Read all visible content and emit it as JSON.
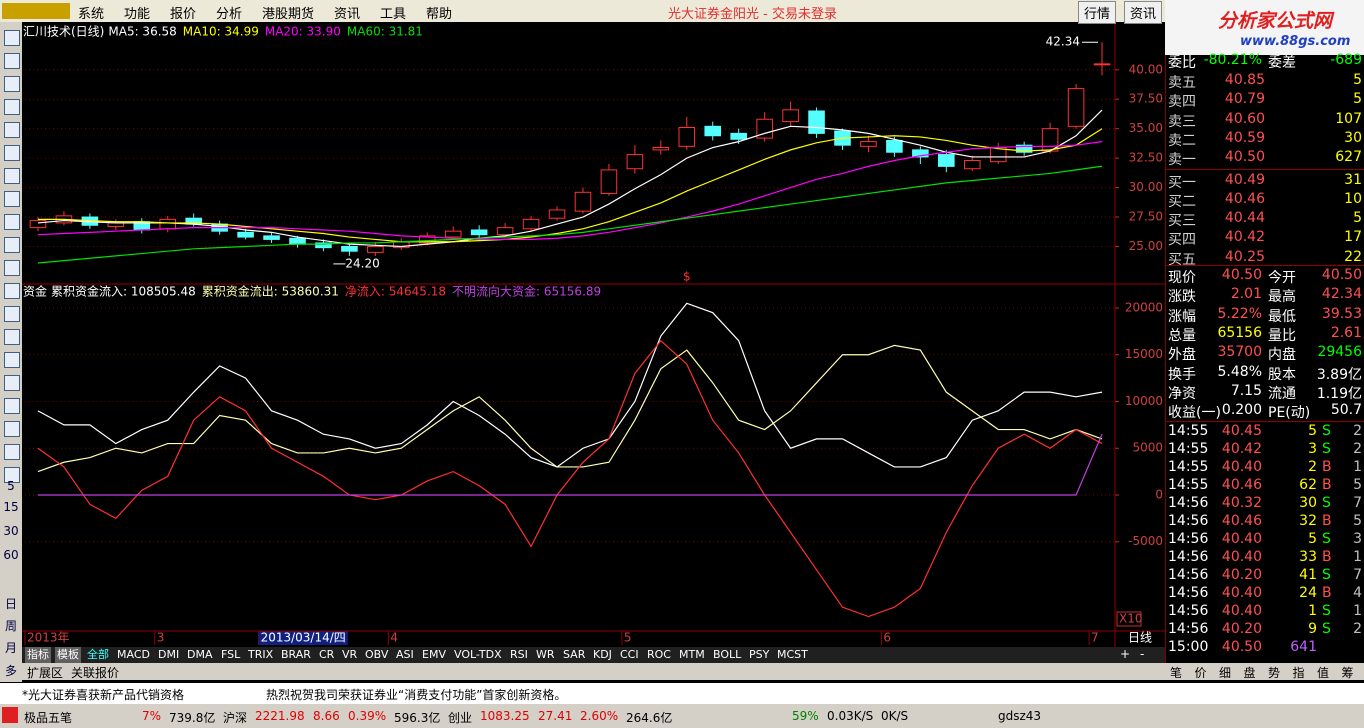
{
  "menu": {
    "items": [
      "系统",
      "功能",
      "报价",
      "分析",
      "港股期货",
      "资讯",
      "工具",
      "帮助"
    ],
    "window_title": "光大证券金阳光 - 交易未登录",
    "buttons": [
      "行情",
      "资讯"
    ],
    "logo": "分析家公式网",
    "logo_url": "www.88gs.com"
  },
  "left_toolbar": {
    "labels": [
      "5",
      "15",
      "30",
      "60",
      "日",
      "周",
      "月",
      "多"
    ]
  },
  "chart_data": [
    {
      "type": "candlestick",
      "title": "汇川技术(日线)",
      "categories": [
        "2013年",
        null,
        null,
        null,
        null,
        "3",
        null,
        null,
        null,
        "2013/03/14/四",
        null,
        null,
        null,
        null,
        "4",
        null,
        null,
        null,
        null,
        null,
        null,
        null,
        null,
        "5",
        null,
        null,
        null,
        null,
        null,
        null,
        null,
        null,
        null,
        "6",
        null,
        null,
        null,
        null,
        null,
        null,
        null,
        "7"
      ],
      "open": [
        26.6,
        27.0,
        27.5,
        26.7,
        27.1,
        26.5,
        27.4,
        26.9,
        26.2,
        25.9,
        25.7,
        25.3,
        25.0,
        24.5,
        24.9,
        25.3,
        25.8,
        26.4,
        26.0,
        26.5,
        27.4,
        28.0,
        29.5,
        31.6,
        33.2,
        33.5,
        35.2,
        34.6,
        34.2,
        35.6,
        36.5,
        34.8,
        33.5,
        34.0,
        33.2,
        32.8,
        31.6,
        32.2,
        33.6,
        33.1,
        35.2,
        40.5
      ],
      "high": [
        27.5,
        28.0,
        27.8,
        27.3,
        27.4,
        27.6,
        27.8,
        27.2,
        26.5,
        26.2,
        25.9,
        25.6,
        25.2,
        25.4,
        25.7,
        26.2,
        26.7,
        26.8,
        27.0,
        27.6,
        28.4,
        30.0,
        32.0,
        33.6,
        34.0,
        36.0,
        35.6,
        35.0,
        36.4,
        37.3,
        36.8,
        35.0,
        34.4,
        34.3,
        33.5,
        33.2,
        32.7,
        33.8,
        33.9,
        35.5,
        38.8,
        42.34
      ],
      "low": [
        26.3,
        26.8,
        26.5,
        26.4,
        26.1,
        26.2,
        26.7,
        26.0,
        25.6,
        25.3,
        24.9,
        24.6,
        24.2,
        24.2,
        24.7,
        25.1,
        25.6,
        25.7,
        25.8,
        26.3,
        27.2,
        27.8,
        29.3,
        31.2,
        32.8,
        33.2,
        34.0,
        33.7,
        33.9,
        35.2,
        34.2,
        33.2,
        33.0,
        32.6,
        32.0,
        31.3,
        31.4,
        32.0,
        32.7,
        32.9,
        35.0,
        39.53
      ],
      "close": [
        27.2,
        27.6,
        26.8,
        27.0,
        26.4,
        27.3,
        26.9,
        26.3,
        25.8,
        25.6,
        25.2,
        24.9,
        24.6,
        25.0,
        25.4,
        25.9,
        26.3,
        26.0,
        26.6,
        27.3,
        28.1,
        29.6,
        31.5,
        32.8,
        33.4,
        35.1,
        34.4,
        34.1,
        35.8,
        36.6,
        34.6,
        33.6,
        33.9,
        33.0,
        32.6,
        31.8,
        32.3,
        33.4,
        33.0,
        35.0,
        38.4,
        40.5
      ],
      "up_color": "#ff3232",
      "down_color": "#54ffff",
      "series": [
        {
          "name": "MA5: 36.58",
          "color": "#ffffff",
          "values": [
            27.0,
            27.2,
            27.1,
            27.0,
            27.0,
            27.0,
            26.9,
            26.7,
            26.4,
            26.2,
            25.8,
            25.5,
            25.2,
            25.1,
            25.0,
            25.2,
            25.4,
            25.7,
            25.9,
            26.3,
            26.9,
            27.5,
            28.6,
            29.9,
            31.1,
            32.5,
            33.4,
            33.9,
            34.6,
            35.2,
            35.1,
            34.9,
            34.6,
            34.1,
            33.6,
            33.0,
            32.6,
            32.6,
            32.6,
            33.1,
            34.4,
            36.58
          ]
        },
        {
          "name": "MA10: 34.99",
          "color": "#ffff00",
          "values": [
            27.3,
            27.3,
            27.2,
            27.1,
            27.1,
            27.0,
            27.0,
            26.9,
            26.7,
            26.5,
            26.3,
            26.1,
            25.8,
            25.6,
            25.4,
            25.4,
            25.4,
            25.5,
            25.6,
            25.8,
            26.1,
            26.5,
            27.1,
            27.9,
            28.7,
            29.7,
            30.6,
            31.5,
            32.4,
            33.2,
            33.8,
            34.2,
            34.3,
            34.4,
            34.3,
            34.0,
            33.6,
            33.3,
            33.1,
            33.2,
            33.6,
            34.99
          ]
        },
        {
          "name": "MA20: 33.90",
          "color": "#ff00ff",
          "values": [
            26.0,
            26.1,
            26.2,
            26.3,
            26.4,
            26.5,
            26.6,
            26.6,
            26.6,
            26.6,
            26.5,
            26.4,
            26.3,
            26.1,
            25.9,
            25.8,
            25.7,
            25.6,
            25.6,
            25.6,
            25.7,
            25.9,
            26.2,
            26.6,
            27.0,
            27.5,
            28.0,
            28.6,
            29.3,
            30.0,
            30.7,
            31.2,
            31.8,
            32.3,
            32.7,
            33.0,
            33.3,
            33.4,
            33.5,
            33.5,
            33.6,
            33.9
          ]
        },
        {
          "name": "MA60: 31.81",
          "color": "#00e000",
          "values": [
            23.6,
            23.8,
            24.0,
            24.2,
            24.4,
            24.6,
            24.8,
            24.9,
            25.0,
            25.1,
            25.2,
            25.2,
            25.3,
            25.3,
            25.4,
            25.5,
            25.6,
            25.7,
            25.8,
            25.9,
            26.0,
            26.2,
            26.5,
            26.8,
            27.1,
            27.4,
            27.7,
            28.0,
            28.3,
            28.6,
            28.9,
            29.2,
            29.5,
            29.8,
            30.1,
            30.4,
            30.6,
            30.8,
            31.0,
            31.2,
            31.5,
            31.81
          ]
        }
      ],
      "ylim": [
        21.9,
        43.8
      ],
      "yticks": [
        {
          "value": 25,
          "label": "25.00"
        },
        {
          "value": 27.5,
          "label": "27.50"
        },
        {
          "value": 30,
          "label": "30.00"
        },
        {
          "value": 32.5,
          "label": "32.50"
        },
        {
          "value": 35,
          "label": "35.00"
        },
        {
          "value": 37.5,
          "label": "37.50"
        },
        {
          "value": 40,
          "label": "40.00"
        }
      ],
      "grid": true,
      "annotations": [
        {
          "x": 41,
          "y": 42.34,
          "text": "42.34"
        },
        {
          "x": 12,
          "y": 24.2,
          "text": "24.20"
        },
        {
          "x": 25,
          "text": "$"
        }
      ]
    },
    {
      "type": "line",
      "title": "资金",
      "series": [
        {
          "name": "累积资金流入: 108505.48",
          "color": "#ffffff",
          "values": [
            9000,
            7500,
            7500,
            5500,
            7000,
            8000,
            11000,
            13800,
            12500,
            9000,
            8000,
            6500,
            6000,
            5000,
            5500,
            7500,
            10000,
            8500,
            6500,
            4000,
            3000,
            5000,
            6000,
            10000,
            17000,
            20500,
            19500,
            16500,
            9000,
            5000,
            6000,
            6000,
            4500,
            3000,
            3000,
            4000,
            8000,
            9000,
            11000,
            11000,
            10500,
            11000
          ]
        },
        {
          "name": "累积资金流出: 53860.31",
          "color": "#ffffb0",
          "values": [
            2500,
            3500,
            4000,
            5000,
            4500,
            5500,
            5500,
            8500,
            8000,
            5500,
            4500,
            4500,
            5000,
            4500,
            5000,
            7000,
            9000,
            10500,
            8000,
            5000,
            3000,
            3000,
            3500,
            8000,
            13500,
            15500,
            12000,
            8000,
            7000,
            9000,
            12000,
            15000,
            15000,
            16000,
            15500,
            11000,
            9000,
            7000,
            7000,
            6000,
            7000,
            6000
          ]
        },
        {
          "name": "净流入: 54645.18",
          "color": "#ff3030",
          "values": [
            5000,
            3000,
            -1000,
            -2500,
            500,
            2000,
            8000,
            10500,
            9000,
            5000,
            3500,
            2000,
            0,
            -500,
            0,
            1500,
            2500,
            1000,
            -1000,
            -5500,
            0,
            3500,
            6000,
            13000,
            16500,
            14000,
            8000,
            4500,
            0,
            -4000,
            -8000,
            -12000,
            -13000,
            -12000,
            -10000,
            -4000,
            1000,
            5000,
            6500,
            5000,
            7000,
            5500
          ]
        },
        {
          "name": "不明流向大资金: 65156.89",
          "color": "#c040e0",
          "values": [
            0,
            0,
            0,
            0,
            0,
            0,
            0,
            0,
            0,
            0,
            0,
            0,
            0,
            0,
            0,
            0,
            0,
            0,
            0,
            0,
            0,
            0,
            0,
            0,
            0,
            0,
            0,
            0,
            0,
            0,
            0,
            0,
            0,
            0,
            0,
            0,
            0,
            0,
            0,
            0,
            0,
            6500
          ]
        }
      ],
      "ylim": [
        -14440,
        22460
      ],
      "yticks": [
        -5000,
        0,
        5000,
        10000,
        15000,
        20000
      ],
      "grid": true
    }
  ],
  "pane_controls": {
    "zoom": "X10",
    "period": "日线",
    "plus": "+",
    "minus": "-"
  },
  "indicator_tabs": [
    "指标",
    "模板",
    "全部",
    "MACD",
    "DMI",
    "DMA",
    "FSL",
    "TRIX",
    "BRAR",
    "CR",
    "VR",
    "OBV",
    "ASI",
    "EMV",
    "VOL-TDX",
    "RSI",
    "WR",
    "SAR",
    "KDJ",
    "CCI",
    "ROC",
    "MTM",
    "BOLL",
    "PSY",
    "MCST"
  ],
  "ext_tabs": [
    "扩展区",
    "关联报价"
  ],
  "quote": {
    "header": [
      "委比",
      "-80.21%",
      "委差",
      "-689"
    ],
    "order_book": [
      [
        "卖五",
        "40.85",
        "5"
      ],
      [
        "卖四",
        "40.79",
        "5"
      ],
      [
        "卖三",
        "40.60",
        "107"
      ],
      [
        "卖二",
        "40.59",
        "30"
      ],
      [
        "卖一",
        "40.50",
        "627"
      ],
      [
        "买一",
        "40.49",
        "31"
      ],
      [
        "买二",
        "40.46",
        "10"
      ],
      [
        "买三",
        "40.44",
        "5"
      ],
      [
        "买四",
        "40.42",
        "17"
      ],
      [
        "买五",
        "40.25",
        "22"
      ]
    ],
    "stats": [
      [
        "现价",
        "40.50",
        "今开",
        "40.50"
      ],
      [
        "涨跌",
        "2.01",
        "最高",
        "42.34"
      ],
      [
        "涨幅",
        "5.22%",
        "最低",
        "39.53"
      ],
      [
        "总量",
        "65156",
        "量比",
        "2.61"
      ],
      [
        "外盘",
        "35700",
        "内盘",
        "29456"
      ],
      [
        "换手",
        "5.48%",
        "股本",
        "3.89亿"
      ],
      [
        "净资",
        "7.15",
        "流通",
        "1.19亿"
      ],
      [
        "收益(一)",
        "0.200",
        "PE(动)",
        "50.7"
      ]
    ],
    "stats_colors": [
      [
        "#ff5050",
        "#ff5050"
      ],
      [
        "#ff5050",
        "#ff5050"
      ],
      [
        "#ff5050",
        "#ff5050"
      ],
      [
        "#ffff00",
        "#ff5050"
      ],
      [
        "#ff5050",
        "#00ff00"
      ],
      [
        "#ffffff",
        "#ffffff"
      ],
      [
        "#ffffff",
        "#ffffff"
      ],
      [
        "#ffffff",
        "#ffffff"
      ]
    ],
    "trades": [
      [
        "14:55",
        "40.45",
        "5",
        "S",
        "2"
      ],
      [
        "14:55",
        "40.42",
        "3",
        "S",
        "2"
      ],
      [
        "14:55",
        "40.40",
        "2",
        "B",
        "1"
      ],
      [
        "14:55",
        "40.46",
        "62",
        "B",
        "5"
      ],
      [
        "14:56",
        "40.32",
        "30",
        "S",
        "7"
      ],
      [
        "14:56",
        "40.46",
        "32",
        "B",
        "5"
      ],
      [
        "14:56",
        "40.40",
        "5",
        "S",
        "3"
      ],
      [
        "14:56",
        "40.40",
        "33",
        "B",
        "1"
      ],
      [
        "14:56",
        "40.20",
        "41",
        "S",
        "7"
      ],
      [
        "14:56",
        "40.40",
        "24",
        "B",
        "4"
      ],
      [
        "14:56",
        "40.40",
        "1",
        "S",
        "1"
      ],
      [
        "14:56",
        "40.20",
        "9",
        "S",
        "2"
      ],
      [
        "15:00",
        "40.50",
        "641"
      ]
    ],
    "tabs": [
      "笔",
      "价",
      "细",
      "盘",
      "势",
      "指",
      "值",
      "筹"
    ]
  },
  "ticker": [
    "*光大证券喜获新产品代销资格",
    "热烈祝贺我司荣获证券业“消费支付功能”首家创新资格。"
  ],
  "status": [
    {
      "text": "极品五笔",
      "color": "#000000"
    },
    {
      "text": "7%",
      "color": "#e00000"
    },
    {
      "text": "739.8亿",
      "color": "#000000"
    },
    {
      "text": "沪深",
      "color": "#000000"
    },
    {
      "text": "2221.98",
      "color": "#e00000"
    },
    {
      "text": "8.66",
      "color": "#e00000"
    },
    {
      "text": "0.39%",
      "color": "#e00000"
    },
    {
      "text": "596.3亿",
      "color": "#000000"
    },
    {
      "text": "创业",
      "color": "#000000"
    },
    {
      "text": "1083.25",
      "color": "#e00000"
    },
    {
      "text": "27.41",
      "color": "#e00000"
    },
    {
      "text": "2.60%",
      "color": "#e00000"
    },
    {
      "text": "264.6亿",
      "color": "#000000"
    },
    {
      "text": "59%",
      "color": "#008000"
    },
    {
      "text": "0.03K/S",
      "color": "#000000"
    },
    {
      "text": "0K/S",
      "color": "#000000"
    },
    {
      "text": "gdsz43",
      "color": "#000000"
    }
  ]
}
